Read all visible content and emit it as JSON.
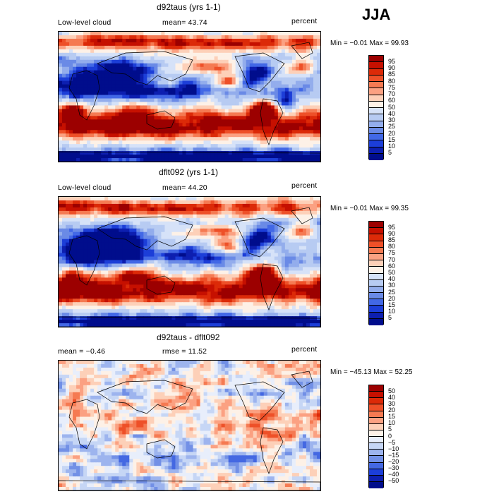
{
  "season": "JJA",
  "chart_data": [
    {
      "type": "heatmap",
      "title": "d92taus (yrs 1-1)",
      "field_label": "Low-level cloud",
      "mean_text": "mean=  43.74",
      "units": "percent",
      "minmax_text": "Min =  −0.01 Max =  99.93",
      "min": -0.01,
      "max": 99.93,
      "mean": 43.74,
      "levels": [
        "95",
        "90",
        "85",
        "80",
        "75",
        "70",
        "60",
        "50",
        "40",
        "30",
        "25",
        "20",
        "15",
        "10",
        "5"
      ],
      "colors": [
        "#9c0000",
        "#c61000",
        "#dc2a08",
        "#ee5028",
        "#f57a52",
        "#fba182",
        "#fdd0b8",
        "#fdf1e7",
        "#d6e2f8",
        "#b7cbf2",
        "#93adec",
        "#6a8ae6",
        "#4268e6",
        "#1c3ed8",
        "#0d1fb0",
        "#000d8c"
      ]
    },
    {
      "type": "heatmap",
      "title": "dflt092 (yrs 1-1)",
      "field_label": "Low-level cloud",
      "mean_text": "mean=  44.20",
      "units": "percent",
      "minmax_text": "Min =  −0.01 Max =  99.35",
      "min": -0.01,
      "max": 99.35,
      "mean": 44.2,
      "levels": [
        "95",
        "90",
        "85",
        "80",
        "75",
        "70",
        "60",
        "50",
        "40",
        "30",
        "25",
        "20",
        "15",
        "10",
        "5"
      ],
      "colors": [
        "#9c0000",
        "#c61000",
        "#dc2a08",
        "#ee5028",
        "#f57a52",
        "#fba182",
        "#fdd0b8",
        "#fdf1e7",
        "#d6e2f8",
        "#b7cbf2",
        "#93adec",
        "#6a8ae6",
        "#4268e6",
        "#1c3ed8",
        "#0d1fb0",
        "#000d8c"
      ]
    },
    {
      "type": "heatmap",
      "title": "d92taus - dflt092",
      "mean_text": "mean =  −0.46",
      "rmse_text": "rmse =  11.52",
      "units": "percent",
      "minmax_text": "Min = −45.13 Max =  52.25",
      "min": -45.13,
      "max": 52.25,
      "mean": -0.46,
      "rmse": 11.52,
      "levels": [
        "50",
        "40",
        "30",
        "20",
        "15",
        "10",
        "5",
        "0",
        "−5",
        "−10",
        "−15",
        "−20",
        "−30",
        "−40",
        "−50"
      ],
      "colors": [
        "#9c0000",
        "#c61000",
        "#dc2a08",
        "#ee5028",
        "#f57a52",
        "#fba182",
        "#fdd0b8",
        "#fdf1e7",
        "#e8eefb",
        "#c6d6f5",
        "#9db4ee",
        "#7290e6",
        "#4468e2",
        "#1c3ed8",
        "#0d1fb0",
        "#000d8c"
      ]
    }
  ]
}
